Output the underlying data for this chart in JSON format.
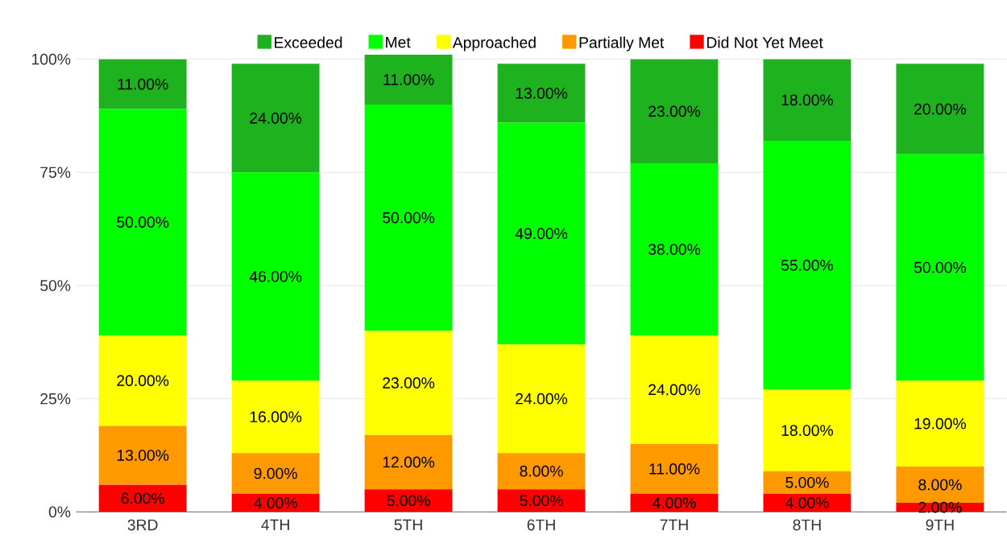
{
  "chart_data": {
    "type": "bar",
    "stacked": true,
    "categories": [
      "3RD",
      "4TH",
      "5TH",
      "6TH",
      "7TH",
      "8TH",
      "9TH"
    ],
    "series": [
      {
        "name": "Did Not Yet Meet",
        "color": "#ff0000",
        "values": [
          6,
          4,
          5,
          5,
          4,
          4,
          2
        ],
        "value_labels": [
          "6.00%",
          "4.00%",
          "5.00%",
          "5.00%",
          "4.00%",
          "4.00%",
          "2.00%"
        ]
      },
      {
        "name": "Partially Met",
        "color": "#ff9900",
        "values": [
          13,
          9,
          12,
          8,
          11,
          5,
          8
        ],
        "value_labels": [
          "13.00%",
          "9.00%",
          "12.00%",
          "8.00%",
          "11.00%",
          "5.00%",
          "8.00%"
        ]
      },
      {
        "name": "Approached",
        "color": "#ffff00",
        "values": [
          20,
          16,
          23,
          24,
          24,
          18,
          19
        ],
        "value_labels": [
          "20.00%",
          "16.00%",
          "23.00%",
          "24.00%",
          "24.00%",
          "18.00%",
          "19.00%"
        ]
      },
      {
        "name": "Met",
        "color": "#00ff00",
        "values": [
          50,
          46,
          50,
          49,
          38,
          55,
          50
        ],
        "value_labels": [
          "50.00%",
          "46.00%",
          "50.00%",
          "49.00%",
          "38.00%",
          "55.00%",
          "50.00%"
        ]
      },
      {
        "name": "Exceeded",
        "color": "#1fb21f",
        "values": [
          11,
          24,
          11,
          13,
          23,
          18,
          20
        ],
        "value_labels": [
          "11.00%",
          "24.00%",
          "11.00%",
          "13.00%",
          "23.00%",
          "18.00%",
          "20.00%"
        ]
      }
    ],
    "ylim": [
      0,
      101
    ],
    "yticks": [
      {
        "value": 0,
        "label": "0%"
      },
      {
        "value": 25,
        "label": "25%"
      },
      {
        "value": 50,
        "label": "50%"
      },
      {
        "value": 75,
        "label": "75%"
      },
      {
        "value": 100,
        "label": "100%"
      }
    ],
    "grid": "y",
    "legend": "top"
  }
}
